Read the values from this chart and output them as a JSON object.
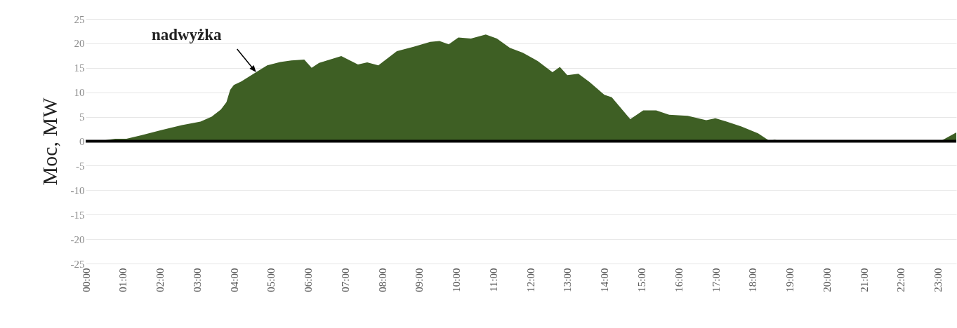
{
  "chart_data": {
    "type": "area",
    "ylabel": "Moc, MW",
    "x": [
      0,
      0.53,
      0.8,
      1.1,
      1.5,
      2.05,
      2.6,
      3.1,
      3.4,
      3.65,
      3.8,
      3.9,
      4.0,
      4.2,
      4.6,
      4.9,
      5.25,
      5.55,
      5.9,
      6.1,
      6.3,
      6.9,
      7.35,
      7.6,
      7.9,
      8.4,
      8.85,
      9.3,
      9.55,
      9.8,
      10.06,
      10.4,
      10.8,
      11.1,
      11.45,
      11.8,
      12.2,
      12.6,
      12.8,
      13.0,
      13.3,
      13.6,
      14.0,
      14.2,
      14.7,
      15.05,
      15.4,
      15.75,
      16.25,
      16.75,
      17.0,
      17.3,
      17.7,
      18.15,
      18.45,
      18.6,
      18.8,
      23.07,
      23.5
    ],
    "series": [
      {
        "color": "#3e5f24",
        "values": [
          0,
          0.2,
          0.5,
          0.5,
          1.2,
          2.3,
          3.3,
          4.0,
          5.0,
          6.5,
          8.0,
          10.5,
          11.5,
          12.2,
          14.1,
          15.5,
          16.2,
          16.5,
          16.7,
          15.0,
          16.0,
          17.4,
          15.7,
          16.1,
          15.5,
          18.4,
          19.3,
          20.3,
          20.5,
          19.8,
          21.2,
          21.0,
          21.8,
          21.0,
          19.1,
          18.1,
          16.4,
          14.1,
          15.2,
          13.5,
          13.8,
          12.1,
          9.5,
          9.0,
          4.5,
          6.3,
          6.3,
          5.4,
          5.2,
          4.3,
          4.7,
          4.0,
          3.0,
          1.6,
          0.1,
          0.3,
          0,
          0,
          1.8
        ]
      }
    ],
    "xlim": [
      0,
      23.5
    ],
    "xticks": [
      {
        "value": 0,
        "label": "00:00"
      },
      {
        "value": 1,
        "label": "01:00"
      },
      {
        "value": 2,
        "label": "02:00"
      },
      {
        "value": 3,
        "label": "03:00"
      },
      {
        "value": 4,
        "label": "04:00"
      },
      {
        "value": 5,
        "label": "05:00"
      },
      {
        "value": 6,
        "label": "06:00"
      },
      {
        "value": 7,
        "label": "07:00"
      },
      {
        "value": 8,
        "label": "08:00"
      },
      {
        "value": 9,
        "label": "09:00"
      },
      {
        "value": 10,
        "label": "10:00"
      },
      {
        "value": 11,
        "label": "11:00"
      },
      {
        "value": 12,
        "label": "12:00"
      },
      {
        "value": 13,
        "label": "13:00"
      },
      {
        "value": 14,
        "label": "14:00"
      },
      {
        "value": 15,
        "label": "15:00"
      },
      {
        "value": 16,
        "label": "16:00"
      },
      {
        "value": 17,
        "label": "17:00"
      },
      {
        "value": 18,
        "label": "18:00"
      },
      {
        "value": 19,
        "label": "19:00"
      },
      {
        "value": 20,
        "label": "20:00"
      },
      {
        "value": 21,
        "label": "21:00"
      },
      {
        "value": 22,
        "label": "22:00"
      },
      {
        "value": 23,
        "label": "23:00"
      }
    ],
    "ylim": [
      -25,
      25
    ],
    "yticks": [
      -25,
      -20,
      -15,
      -10,
      -5,
      0,
      5,
      10,
      15,
      20,
      25
    ],
    "grid": "y",
    "ref_lines": [
      {
        "axis": "y",
        "value": 0,
        "color": "#000000"
      }
    ],
    "annotations": [
      {
        "text": "nadwyżka",
        "x": 4.6,
        "y": 14.1
      }
    ]
  }
}
